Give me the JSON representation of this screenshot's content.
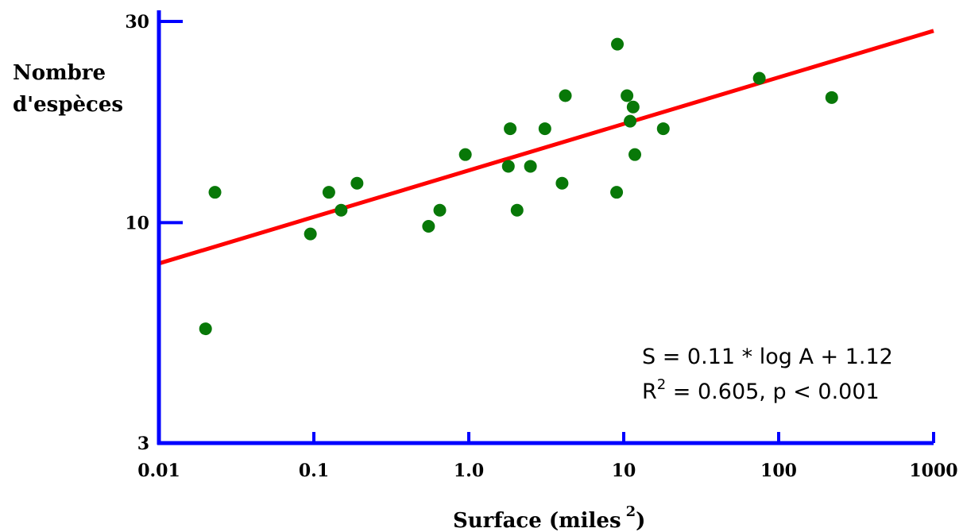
{
  "chart_data": {
    "type": "scatter",
    "xlabel": "Surface (miles",
    "xlabel_sup": "2",
    "xlabel_close": ")",
    "ylabel": [
      "Nombre",
      "d'espèces"
    ],
    "x_scale": "log",
    "y_scale": "log",
    "xlim": [
      0.01,
      1000
    ],
    "ylim": [
      3,
      30
    ],
    "x_ticks": [
      0.01,
      0.1,
      1.0,
      10,
      100,
      1000
    ],
    "x_tick_labels": [
      "0.01",
      "0.1",
      "1.0",
      "10",
      "100",
      "1000"
    ],
    "y_ticks": [
      3,
      10,
      30
    ],
    "y_tick_labels": [
      "3",
      "10",
      "30"
    ],
    "grid": false,
    "points": [
      {
        "x": 0.02,
        "y": 5.6
      },
      {
        "x": 0.023,
        "y": 11.8
      },
      {
        "x": 0.095,
        "y": 9.4
      },
      {
        "x": 0.125,
        "y": 11.8
      },
      {
        "x": 0.15,
        "y": 10.7
      },
      {
        "x": 0.19,
        "y": 12.4
      },
      {
        "x": 0.55,
        "y": 9.8
      },
      {
        "x": 0.65,
        "y": 10.7
      },
      {
        "x": 0.95,
        "y": 14.5
      },
      {
        "x": 1.8,
        "y": 13.6
      },
      {
        "x": 1.85,
        "y": 16.7
      },
      {
        "x": 2.05,
        "y": 10.7
      },
      {
        "x": 2.5,
        "y": 13.6
      },
      {
        "x": 3.1,
        "y": 16.7
      },
      {
        "x": 4.0,
        "y": 12.4
      },
      {
        "x": 4.2,
        "y": 20.0
      },
      {
        "x": 9.0,
        "y": 11.8
      },
      {
        "x": 9.1,
        "y": 26.5
      },
      {
        "x": 10.5,
        "y": 20.0
      },
      {
        "x": 11.0,
        "y": 17.4
      },
      {
        "x": 11.5,
        "y": 18.8
      },
      {
        "x": 11.8,
        "y": 14.5
      },
      {
        "x": 18.0,
        "y": 16.7
      },
      {
        "x": 75.0,
        "y": 22.0
      },
      {
        "x": 220.0,
        "y": 19.8
      }
    ],
    "point_color": "#087808",
    "fit_line": {
      "x": [
        0.01,
        1000
      ],
      "y": [
        8.0,
        28.5
      ],
      "color": "#ff0000"
    },
    "axis_color": "#0000ff",
    "annotations": {
      "equation": "S = 0.11 * log A + 1.12",
      "r2_prefix": "R",
      "r2_sup": "2",
      "r2_rest": " = 0.605, p < 0.001"
    }
  }
}
